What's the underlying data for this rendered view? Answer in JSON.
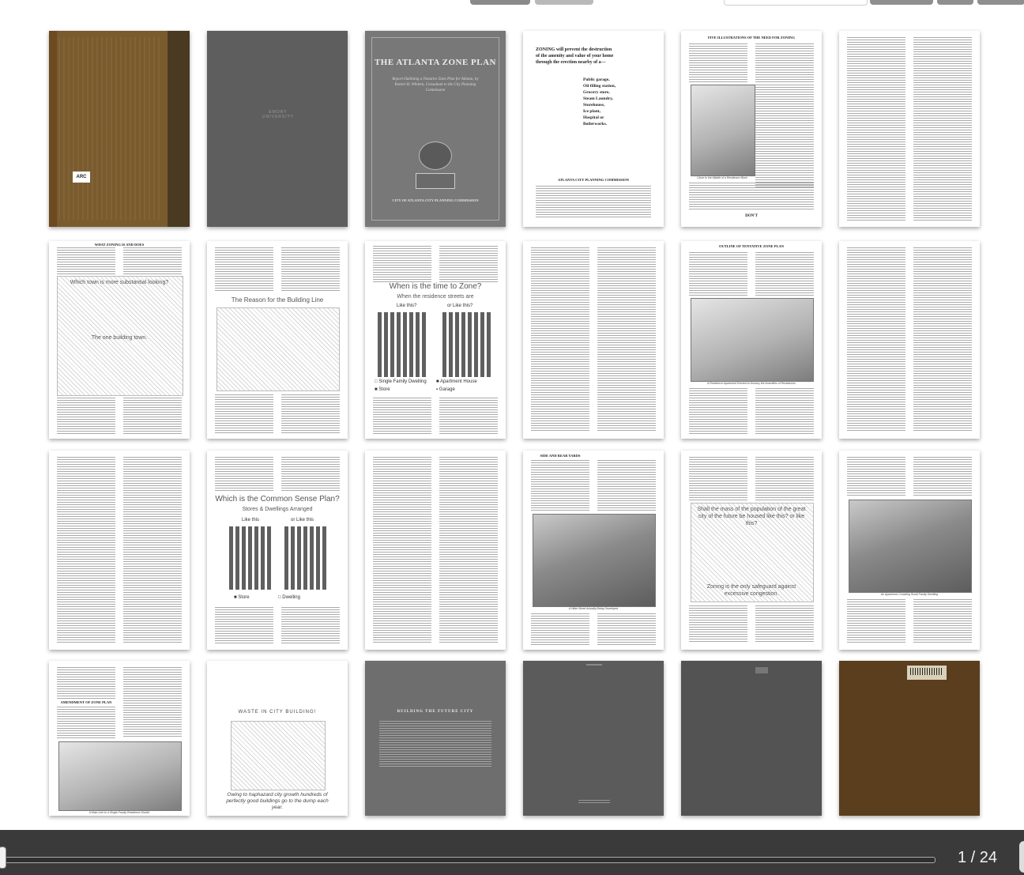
{
  "viewer": {
    "page_indicator": "1 / 24",
    "current_page": 1,
    "total_pages": 24,
    "scrub_progress": 0.0
  },
  "pages": {
    "p1": {
      "sticker": "ARC"
    },
    "p2": {
      "label": "EMORY UNIVERSITY"
    },
    "p3": {
      "title": "THE ATLANTA ZONE PLAN",
      "subtitle": "Report Outlining a Tentative Zone Plan for Atlanta, by Robert H. Whitten, Consultant to the City Planning Commission",
      "footer": "CITY OF ATLANTA CITY PLANNING COMMISSION"
    },
    "p4": {
      "intro": "ZONING will prevent the destruction of the amenity and value of your home through the erection nearby of a—",
      "list": [
        "Public garage,",
        "Oil filling station,",
        "Grocery store,",
        "Steam Laundry,",
        "Storehouse,",
        "Ice plant,",
        "Hospital or",
        "Boilerworks."
      ],
      "commission": "ATLANTA CITY PLANNING COMMISSION"
    },
    "p5": {
      "heading": "FIVE ILLUSTRATIONS OF THE NEED FOR ZONING",
      "caption": "Close to the Middle of a Residence Block",
      "footer": "DON'T"
    },
    "p7": {
      "heading": "WHAT ZONING IS AND DOES",
      "q": "Which town is more substantial looking?",
      "a": "The one building town."
    },
    "p8": {
      "title": "The Reason for the Building Line"
    },
    "p9": {
      "q": "When is the time to Zone?",
      "sub": "When the residence streets are",
      "left": "Like this?",
      "right": "or Like this?",
      "legend1": "Single Family Dwelling",
      "legend2": "Store",
      "legend3": "Apartment House",
      "legend4": "Garage"
    },
    "p11": {
      "heading": "OUTLINE OF TENTATIVE ZONE PLAN",
      "caption": "A Residence Apartment Erected to Destroy the Amenities of Residences"
    },
    "p14": {
      "title": "Which is the Common Sense Plan?",
      "sub": "Stores & Dwellings Arranged",
      "left": "Like this",
      "right": "or Like this",
      "legend1": "Store",
      "legend2": "Dwelling"
    },
    "p16": {
      "heading": "SIDE AND REAR YARDS",
      "caption": "A Wide Street Actually Being Developed"
    },
    "p17": {
      "q": "Shall the mass of the population of the great city of the future be housed like this? or like this?",
      "a": "Zoning is the only safeguard against excessive congestion."
    },
    "p18": {
      "caption": "An Apartment Crowding Small Family Dwelling"
    },
    "p19": {
      "heading": "AMENDMENT OF ZONE PLAN",
      "caption": "A Main Line to a Single-Family Residence District"
    },
    "p20": {
      "title": "WASTE IN CITY BUILDING!",
      "caption": "Owing to haphazard city growth hundreds of perfectly good buildings go to the dump each year."
    },
    "p21": {
      "title": "BUILDING THE FUTURE CITY"
    }
  }
}
